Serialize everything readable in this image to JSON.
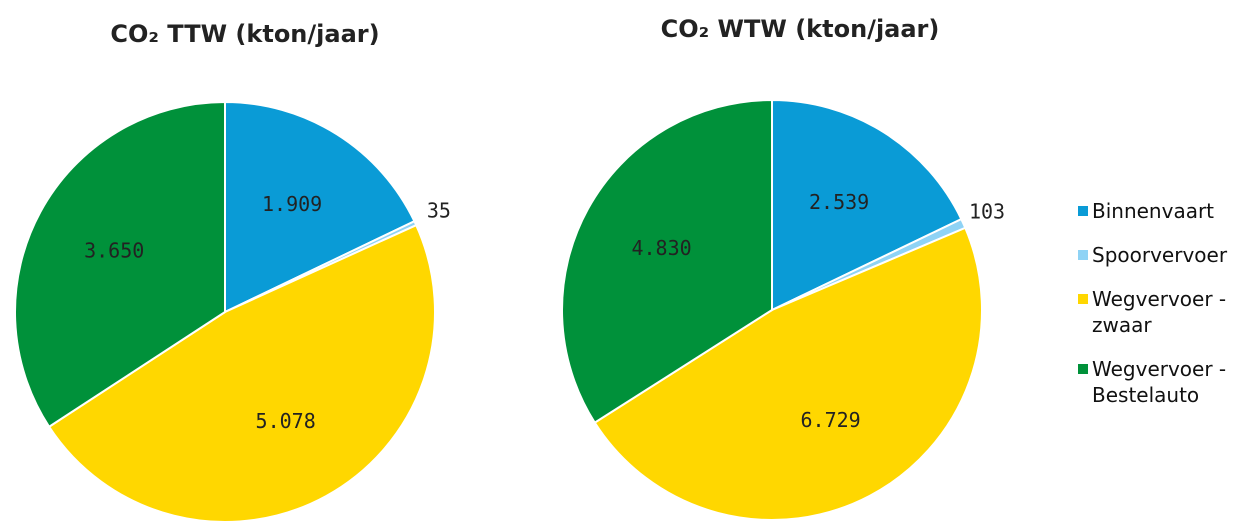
{
  "chart_data": [
    {
      "type": "pie",
      "title": "CO₂ TTW (kton/jaar)",
      "categories": [
        "Binnenvaart",
        "Spoorvervoer",
        "Wegvervoer - zwaar",
        "Wegvervoer - Bestelauto"
      ],
      "values": [
        1909,
        35,
        5078,
        3650
      ],
      "value_labels": [
        "1.909",
        "35",
        "5.078",
        "3.650"
      ],
      "colors": [
        "#0a9bd6",
        "#8fd3f5",
        "#ffd700",
        "#00913a"
      ],
      "legend": "right"
    },
    {
      "type": "pie",
      "title": "CO₂ WTW (kton/jaar)",
      "categories": [
        "Binnenvaart",
        "Spoorvervoer",
        "Wegvervoer - zwaar",
        "Wegvervoer - Bestelauto"
      ],
      "values": [
        2539,
        103,
        6729,
        4830
      ],
      "value_labels": [
        "2.539",
        "103",
        "6.729",
        "4.830"
      ],
      "colors": [
        "#0a9bd6",
        "#8fd3f5",
        "#ffd700",
        "#00913a"
      ],
      "legend": "right"
    }
  ]
}
